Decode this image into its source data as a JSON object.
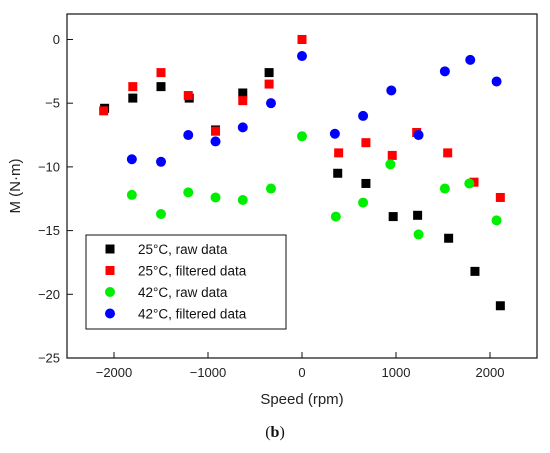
{
  "caption": {
    "open": "(",
    "bold": "b",
    "close": ")"
  },
  "chart_data": {
    "type": "scatter",
    "title": "",
    "xlabel": "Speed (rpm)",
    "ylabel": "M (N·m)",
    "xlim": [
      -2500,
      2500
    ],
    "ylim": [
      -25,
      2
    ],
    "xticks": [
      -2000,
      -1000,
      0,
      1000,
      2000
    ],
    "yticks": [
      0,
      -5,
      -10,
      -15,
      -20,
      -25
    ],
    "legend_position": "bottom-left",
    "grid": false,
    "series": [
      {
        "name": "25°C, raw data",
        "color": "#000000",
        "marker": "square",
        "points": [
          [
            -2100,
            -5.4
          ],
          [
            -1800,
            -4.6
          ],
          [
            -1500,
            -3.7
          ],
          [
            -1200,
            -4.6
          ],
          [
            -920,
            -7.1
          ],
          [
            -630,
            -4.2
          ],
          [
            -350,
            -2.6
          ],
          [
            0,
            0.0
          ],
          [
            380,
            -10.5
          ],
          [
            680,
            -11.3
          ],
          [
            970,
            -13.9
          ],
          [
            1230,
            -13.8
          ],
          [
            1560,
            -15.6
          ],
          [
            1840,
            -18.2
          ],
          [
            2110,
            -20.9
          ]
        ]
      },
      {
        "name": "25°C, filtered data",
        "color": "#ff0000",
        "marker": "square",
        "points": [
          [
            -2110,
            -5.6
          ],
          [
            -1800,
            -3.7
          ],
          [
            -1500,
            -2.6
          ],
          [
            -1210,
            -4.4
          ],
          [
            -920,
            -7.2
          ],
          [
            -630,
            -4.8
          ],
          [
            -350,
            -3.5
          ],
          [
            0,
            0.0
          ],
          [
            390,
            -8.9
          ],
          [
            680,
            -8.1
          ],
          [
            960,
            -9.1
          ],
          [
            1220,
            -7.3
          ],
          [
            1550,
            -8.9
          ],
          [
            1830,
            -11.2
          ],
          [
            2110,
            -12.4
          ]
        ]
      },
      {
        "name": "42°C, raw data",
        "color": "#00ee00",
        "marker": "circle",
        "points": [
          [
            -1810,
            -12.2
          ],
          [
            -1500,
            -13.7
          ],
          [
            -1210,
            -12.0
          ],
          [
            -920,
            -12.4
          ],
          [
            -630,
            -12.6
          ],
          [
            -330,
            -11.7
          ],
          [
            0,
            -7.6
          ],
          [
            360,
            -13.9
          ],
          [
            650,
            -12.8
          ],
          [
            940,
            -9.8
          ],
          [
            1240,
            -15.3
          ],
          [
            1520,
            -11.7
          ],
          [
            1780,
            -11.3
          ],
          [
            2070,
            -14.2
          ]
        ]
      },
      {
        "name": "42°C, filtered data",
        "color": "#0000ff",
        "marker": "circle",
        "points": [
          [
            -1810,
            -9.4
          ],
          [
            -1500,
            -9.6
          ],
          [
            -1210,
            -7.5
          ],
          [
            -920,
            -8.0
          ],
          [
            -630,
            -6.9
          ],
          [
            -330,
            -5.0
          ],
          [
            0,
            -1.3
          ],
          [
            350,
            -7.4
          ],
          [
            650,
            -6.0
          ],
          [
            950,
            -4.0
          ],
          [
            1240,
            -7.5
          ],
          [
            1520,
            -2.5
          ],
          [
            1790,
            -1.6
          ],
          [
            2070,
            -3.3
          ]
        ]
      }
    ]
  }
}
